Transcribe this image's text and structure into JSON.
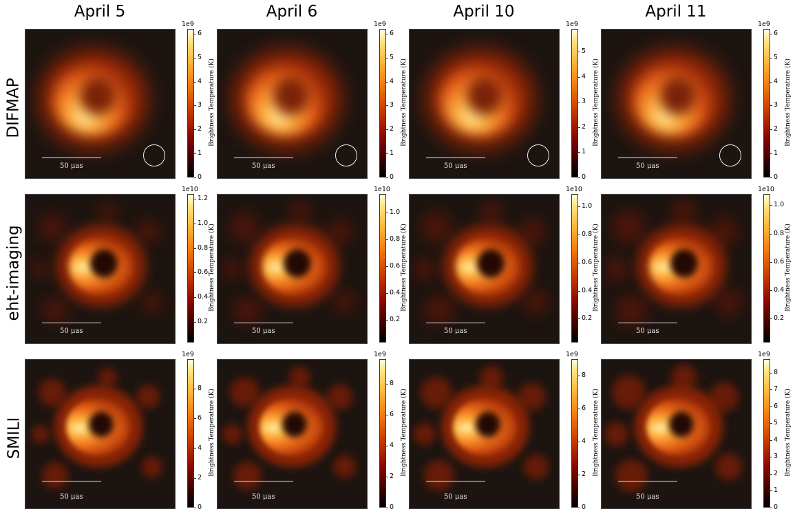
{
  "columns": [
    "April 5",
    "April 6",
    "April 10",
    "April 11"
  ],
  "rows": [
    {
      "label": "DIFMAP",
      "multiplier": "1e9",
      "beam": true,
      "ticks": [
        [
          "0",
          "1",
          "2",
          "3",
          "4",
          "5",
          "6"
        ],
        [
          "0",
          "1",
          "2",
          "3",
          "4",
          "5",
          "6"
        ],
        [
          "0",
          "1",
          "2",
          "3",
          "4",
          "5"
        ],
        [
          "0",
          "1",
          "2",
          "3",
          "4",
          "5",
          "6"
        ]
      ]
    },
    {
      "label": "eht-imaging",
      "multiplier": "1e10",
      "beam": false,
      "ticks": [
        [
          "0.2",
          "0.4",
          "0.6",
          "0.8",
          "1.0",
          "1.2"
        ],
        [
          "0.2",
          "0.4",
          "0.6",
          "0.8",
          "1.0"
        ],
        [
          "0.2",
          "0.4",
          "0.6",
          "0.8",
          "1.0"
        ],
        [
          "0.2",
          "0.4",
          "0.6",
          "0.8",
          "1.0"
        ]
      ]
    },
    {
      "label": "SMILI",
      "multiplier": "1e9",
      "beam": false,
      "ticks": [
        [
          "0",
          "2",
          "4",
          "6",
          "8"
        ],
        [
          "0",
          "2",
          "4",
          "6",
          "8"
        ],
        [
          "0",
          "2",
          "4",
          "6",
          "8"
        ],
        [
          "0",
          "1",
          "2",
          "3",
          "4",
          "5",
          "6",
          "7",
          "8"
        ]
      ]
    }
  ],
  "colorbar_label": "Brightness Temperature (K)",
  "scale_bar_label": "50 μas",
  "colormap": "afmhot",
  "colors": {
    "background": "#1c1410",
    "ring_peak": "#fff0a0",
    "ring_mid": "#f08a20",
    "ring_edge": "#7a1a05"
  }
}
